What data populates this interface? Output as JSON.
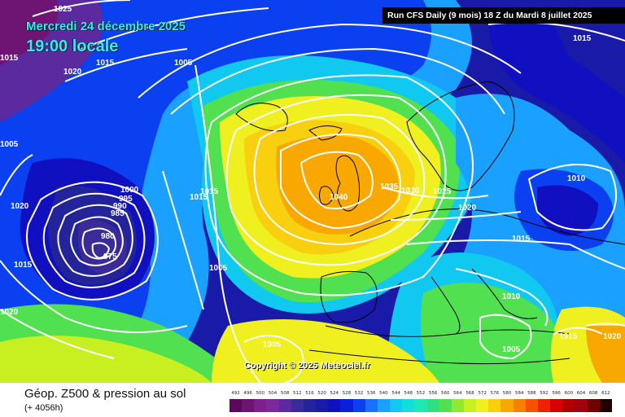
{
  "header": {
    "date_line": "Mercredi 24 décembre 2025",
    "time_line": "19:00 locale",
    "run_info": "Run CFS Daily (9 mois) 18 Z du Mardi 8 juillet 2025"
  },
  "copyright": "Copyright © 2025 Meteociel.fr",
  "legend": {
    "title": "Géop. Z500 & pression au sol",
    "subtitle": "(+ 4056h)",
    "scale_values": [
      "492",
      "496",
      "500",
      "504",
      "508",
      "512",
      "516",
      "520",
      "524",
      "528",
      "532",
      "536",
      "540",
      "544",
      "548",
      "552",
      "556",
      "560",
      "564",
      "568",
      "572",
      "576",
      "580",
      "584",
      "588",
      "592",
      "596",
      "600",
      "604",
      "608",
      "612"
    ],
    "scale_colors": [
      "#5a0a5a",
      "#6e1472",
      "#7f1f8a",
      "#7a2a9e",
      "#5a2a9e",
      "#3a2a9a",
      "#23239a",
      "#1a1aa8",
      "#1010c0",
      "#0a20d8",
      "#0a40f0",
      "#1a70ff",
      "#1aa0ff",
      "#10c8f0",
      "#10e0d8",
      "#20e8b0",
      "#30e080",
      "#50e050",
      "#90e830",
      "#c8f020",
      "#f0f020",
      "#f8d010",
      "#f8a800",
      "#f88000",
      "#f85000",
      "#f02000",
      "#d80000",
      "#b00000",
      "#a00010",
      "#700000",
      "#200000"
    ]
  },
  "isobar_labels": [
    {
      "text": "1025"
    },
    {
      "text": "1020"
    },
    {
      "text": "1015"
    },
    {
      "text": "1005"
    },
    {
      "text": "1015"
    },
    {
      "text": "1000"
    },
    {
      "text": "995"
    },
    {
      "text": "990"
    },
    {
      "text": "985"
    },
    {
      "text": "980"
    },
    {
      "text": "975"
    },
    {
      "text": "1020"
    },
    {
      "text": "1015"
    },
    {
      "text": "1020"
    },
    {
      "text": "1015"
    },
    {
      "text": "1015"
    },
    {
      "text": "1005"
    },
    {
      "text": "1005"
    },
    {
      "text": "1040"
    },
    {
      "text": "1035"
    },
    {
      "text": "1030"
    },
    {
      "text": "1025"
    },
    {
      "text": "1020"
    },
    {
      "text": "1015"
    },
    {
      "text": "1010"
    },
    {
      "text": "1010"
    },
    {
      "text": "1005"
    },
    {
      "text": "1015"
    },
    {
      "text": "1020"
    },
    {
      "text": "1015"
    },
    {
      "text": "1005"
    }
  ]
}
